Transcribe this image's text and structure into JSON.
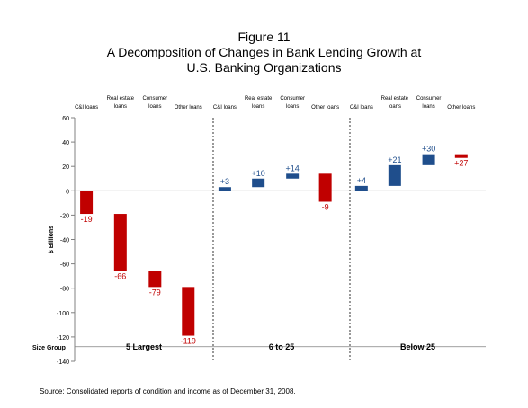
{
  "figure": {
    "label": "Figure 11",
    "title_line1": "A Decomposition of Changes in Bank Lending Growth at",
    "title_line2": "U.S. Banking Organizations"
  },
  "source": "Source: Consolidated reports of condition and income as of December 31, 2008.",
  "chart_data": {
    "type": "bar",
    "subtype": "waterfall",
    "ylabel": "$ Billions",
    "ylim": [
      -140,
      60
    ],
    "yticks": [
      60,
      40,
      20,
      0,
      -20,
      -40,
      -60,
      -80,
      -100,
      -120,
      -140
    ],
    "row_label": "Size Group",
    "colors": {
      "increase": "#1f4e8c",
      "decrease": "#c00000"
    },
    "groups": [
      {
        "name": "5 Largest",
        "bars": [
          {
            "category": [
              "C&I loans"
            ],
            "change": -19,
            "start": 0,
            "end": -19,
            "label": "-19"
          },
          {
            "category": [
              "Real estate",
              "loans"
            ],
            "change": -47,
            "start": -19,
            "end": -66,
            "label": "-66"
          },
          {
            "category": [
              "Consumer",
              "loans"
            ],
            "change": -13,
            "start": -66,
            "end": -79,
            "label": "-79"
          },
          {
            "category": [
              "Other loans"
            ],
            "change": -40,
            "start": -79,
            "end": -119,
            "label": "-119"
          }
        ]
      },
      {
        "name": "6 to 25",
        "bars": [
          {
            "category": [
              "C&I loans"
            ],
            "change": 3,
            "start": 0,
            "end": 3,
            "label": "+3"
          },
          {
            "category": [
              "Real estate",
              "loans"
            ],
            "change": 7,
            "start": 3,
            "end": 10,
            "label": "+10"
          },
          {
            "category": [
              "Consumer",
              "loans"
            ],
            "change": 4,
            "start": 10,
            "end": 14,
            "label": "+14"
          },
          {
            "category": [
              "Other loans"
            ],
            "change": -23,
            "start": 14,
            "end": -9,
            "label": "-9"
          }
        ]
      },
      {
        "name": "Below 25",
        "bars": [
          {
            "category": [
              "C&I loans"
            ],
            "change": 4,
            "start": 0,
            "end": 4,
            "label": "+4"
          },
          {
            "category": [
              "Real estate",
              "loans"
            ],
            "change": 17,
            "start": 4,
            "end": 21,
            "label": "+21"
          },
          {
            "category": [
              "Consumer",
              "loans"
            ],
            "change": 9,
            "start": 21,
            "end": 30,
            "label": "+30"
          },
          {
            "category": [
              "Other loans"
            ],
            "change": -3,
            "start": 30,
            "end": 27,
            "label": "+27"
          }
        ]
      }
    ]
  }
}
